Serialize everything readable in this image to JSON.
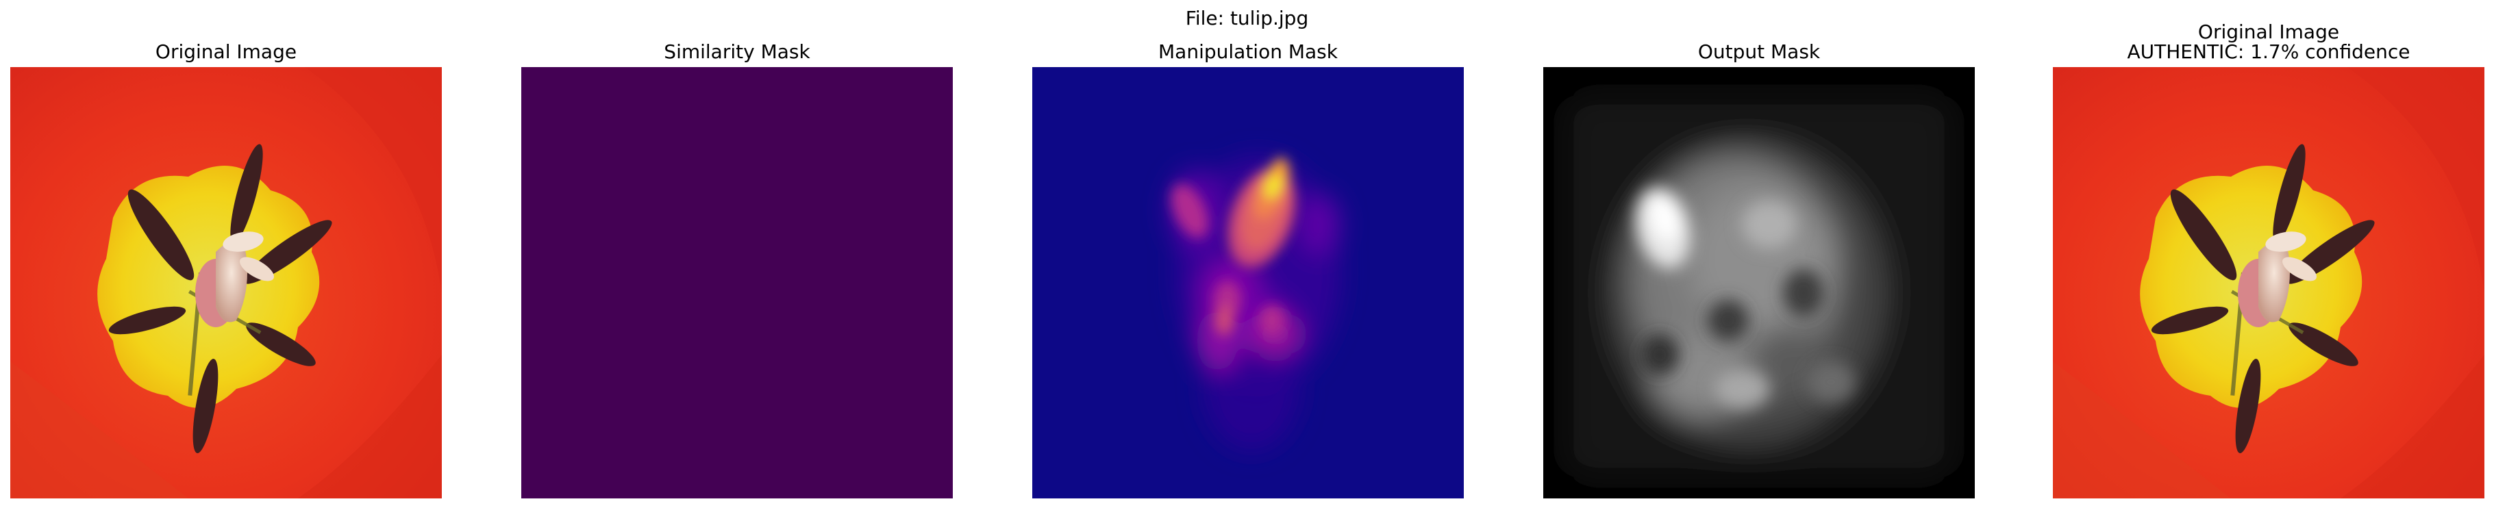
{
  "figure": {
    "title": "File: tulip.jpg"
  },
  "panels": [
    {
      "title": "Original Image",
      "subtitle": "",
      "content": "tulip-photo"
    },
    {
      "title": "Similarity Mask",
      "subtitle": "",
      "content": "uniform-mask",
      "fill_color": "#440154"
    },
    {
      "title": "Manipulation Mask",
      "subtitle": "",
      "content": "heatmap-plasma",
      "colormap": "plasma"
    },
    {
      "title": "Output Mask",
      "subtitle": "",
      "content": "heatmap-gray",
      "colormap": "gray"
    },
    {
      "title": "Original Image",
      "subtitle": "AUTHENTIC: 1.7% confidence",
      "content": "tulip-photo"
    }
  ],
  "colors": {
    "petal_red": "#e8321c",
    "pollen_yellow": "#f0d21c",
    "stamen_dark": "#3a1a1a",
    "viridis_low": "#440154",
    "plasma_low": "#0d0887",
    "gray_low": "#000000"
  }
}
